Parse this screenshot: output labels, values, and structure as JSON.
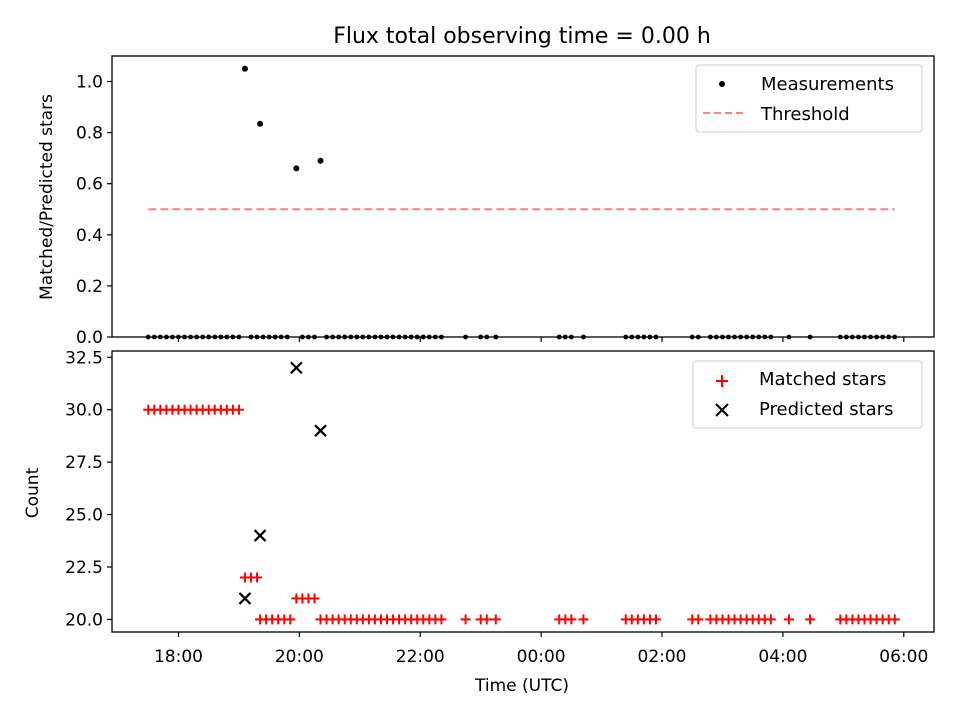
{
  "title": "Flux total observing time = 0.00 h",
  "colors": {
    "matched": "#ff0000",
    "predicted": "#000000",
    "threshold": "#ff7f7f",
    "measure": "#000000"
  },
  "chart_data": [
    {
      "type": "scatter",
      "ylabel": "Matched/Predicted stars",
      "ylim": [
        0,
        1.1
      ],
      "yticks": [
        "0.0",
        "0.2",
        "0.4",
        "0.6",
        "0.8",
        "1.0"
      ],
      "legend_position": "top-right",
      "legend": [
        "Measurements",
        "Threshold"
      ],
      "threshold": {
        "value": 0.5,
        "x_start": 17.5,
        "x_end": 29.85
      },
      "points": [
        {
          "x": 19.1,
          "y": 1.05
        },
        {
          "x": 19.35,
          "y": 0.835
        },
        {
          "x": 19.95,
          "y": 0.66
        },
        {
          "x": 20.35,
          "y": 0.69
        }
      ],
      "zero_x": [
        17.5,
        17.6,
        17.7,
        17.8,
        17.9,
        18.0,
        18.1,
        18.2,
        18.3,
        18.4,
        18.5,
        18.6,
        18.7,
        18.8,
        18.9,
        19.0,
        19.2,
        19.3,
        19.4,
        19.5,
        19.6,
        19.7,
        19.8,
        20.05,
        20.15,
        20.25,
        20.45,
        20.55,
        20.65,
        20.75,
        20.85,
        20.95,
        21.05,
        21.15,
        21.25,
        21.35,
        21.45,
        21.55,
        21.65,
        21.75,
        21.85,
        21.95,
        22.05,
        22.15,
        22.25,
        22.35,
        22.75,
        23.0,
        23.1,
        23.25,
        24.3,
        24.4,
        24.5,
        24.7,
        25.4,
        25.5,
        25.6,
        25.7,
        25.8,
        25.9,
        26.5,
        26.6,
        26.8,
        26.9,
        27.0,
        27.1,
        27.2,
        27.3,
        27.4,
        27.5,
        27.6,
        27.7,
        27.8,
        28.1,
        28.45,
        28.95,
        29.05,
        29.15,
        29.25,
        29.35,
        29.45,
        29.55,
        29.65,
        29.75,
        29.85
      ]
    },
    {
      "type": "scatter",
      "xlabel": "Time (UTC)",
      "ylabel": "Count",
      "ylim": [
        19.4,
        32.8
      ],
      "yticks": [
        "20.0",
        "22.5",
        "25.0",
        "27.5",
        "30.0",
        "32.5"
      ],
      "xticks": [
        "18:00",
        "20:00",
        "22:00",
        "00:00",
        "02:00",
        "04:00",
        "06:00"
      ],
      "xlim": [
        16.9,
        30.5
      ],
      "legend_position": "top-right",
      "legend": [
        "Matched stars",
        "Predicted stars"
      ],
      "predicted": [
        {
          "x": 19.1,
          "y": 21
        },
        {
          "x": 19.35,
          "y": 24
        },
        {
          "x": 19.95,
          "y": 32
        },
        {
          "x": 20.35,
          "y": 29
        }
      ],
      "matched": [
        {
          "x": [
            17.5,
            17.6,
            17.7,
            17.8,
            17.9,
            18.0,
            18.1,
            18.2,
            18.3,
            18.4,
            18.5,
            18.6,
            18.7,
            18.8,
            18.9,
            19.0
          ],
          "y": 30
        },
        {
          "x": [
            19.1,
            19.2,
            19.3
          ],
          "y": 22
        },
        {
          "x": [
            19.95,
            20.05,
            20.15,
            20.25
          ],
          "y": 21
        },
        {
          "x": [
            19.35,
            19.45,
            19.55,
            19.65,
            19.75,
            19.85,
            20.35,
            20.45,
            20.55,
            20.65,
            20.75,
            20.85,
            20.95,
            21.05,
            21.15,
            21.25,
            21.35,
            21.45,
            21.55,
            21.65,
            21.75,
            21.85,
            21.95,
            22.05,
            22.15,
            22.25,
            22.35,
            22.75,
            23.0,
            23.1,
            23.25,
            24.3,
            24.4,
            24.5,
            24.7,
            25.4,
            25.5,
            25.6,
            25.7,
            25.8,
            25.9,
            26.5,
            26.6,
            26.8,
            26.9,
            27.0,
            27.1,
            27.2,
            27.3,
            27.4,
            27.5,
            27.6,
            27.7,
            27.8,
            28.1,
            28.45,
            28.95,
            29.05,
            29.15,
            29.25,
            29.35,
            29.45,
            29.55,
            29.65,
            29.75,
            29.85
          ],
          "y": 20
        }
      ]
    }
  ]
}
